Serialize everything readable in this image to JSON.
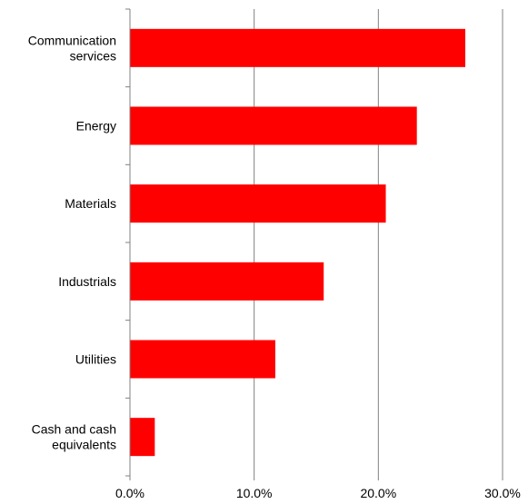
{
  "chart_data": {
    "type": "bar",
    "orientation": "horizontal",
    "categories": [
      [
        "Communication",
        "services"
      ],
      [
        "Energy"
      ],
      [
        "Materials"
      ],
      [
        "Industrials"
      ],
      [
        "Utilities"
      ],
      [
        "Cash and cash",
        "equivalents"
      ]
    ],
    "values": [
      27.0,
      23.1,
      20.6,
      15.6,
      11.7,
      2.0
    ],
    "xlim": [
      0,
      30
    ],
    "xticks": [
      "0.0%",
      "10.0%",
      "20.0%",
      "30.0%"
    ],
    "xtick_values": [
      0,
      10,
      20,
      30
    ],
    "title": "",
    "xlabel": "",
    "ylabel": "",
    "grid": "vertical",
    "colors": {
      "bar": "#ff0000",
      "grid": "#808080",
      "axis": "#808080"
    }
  }
}
